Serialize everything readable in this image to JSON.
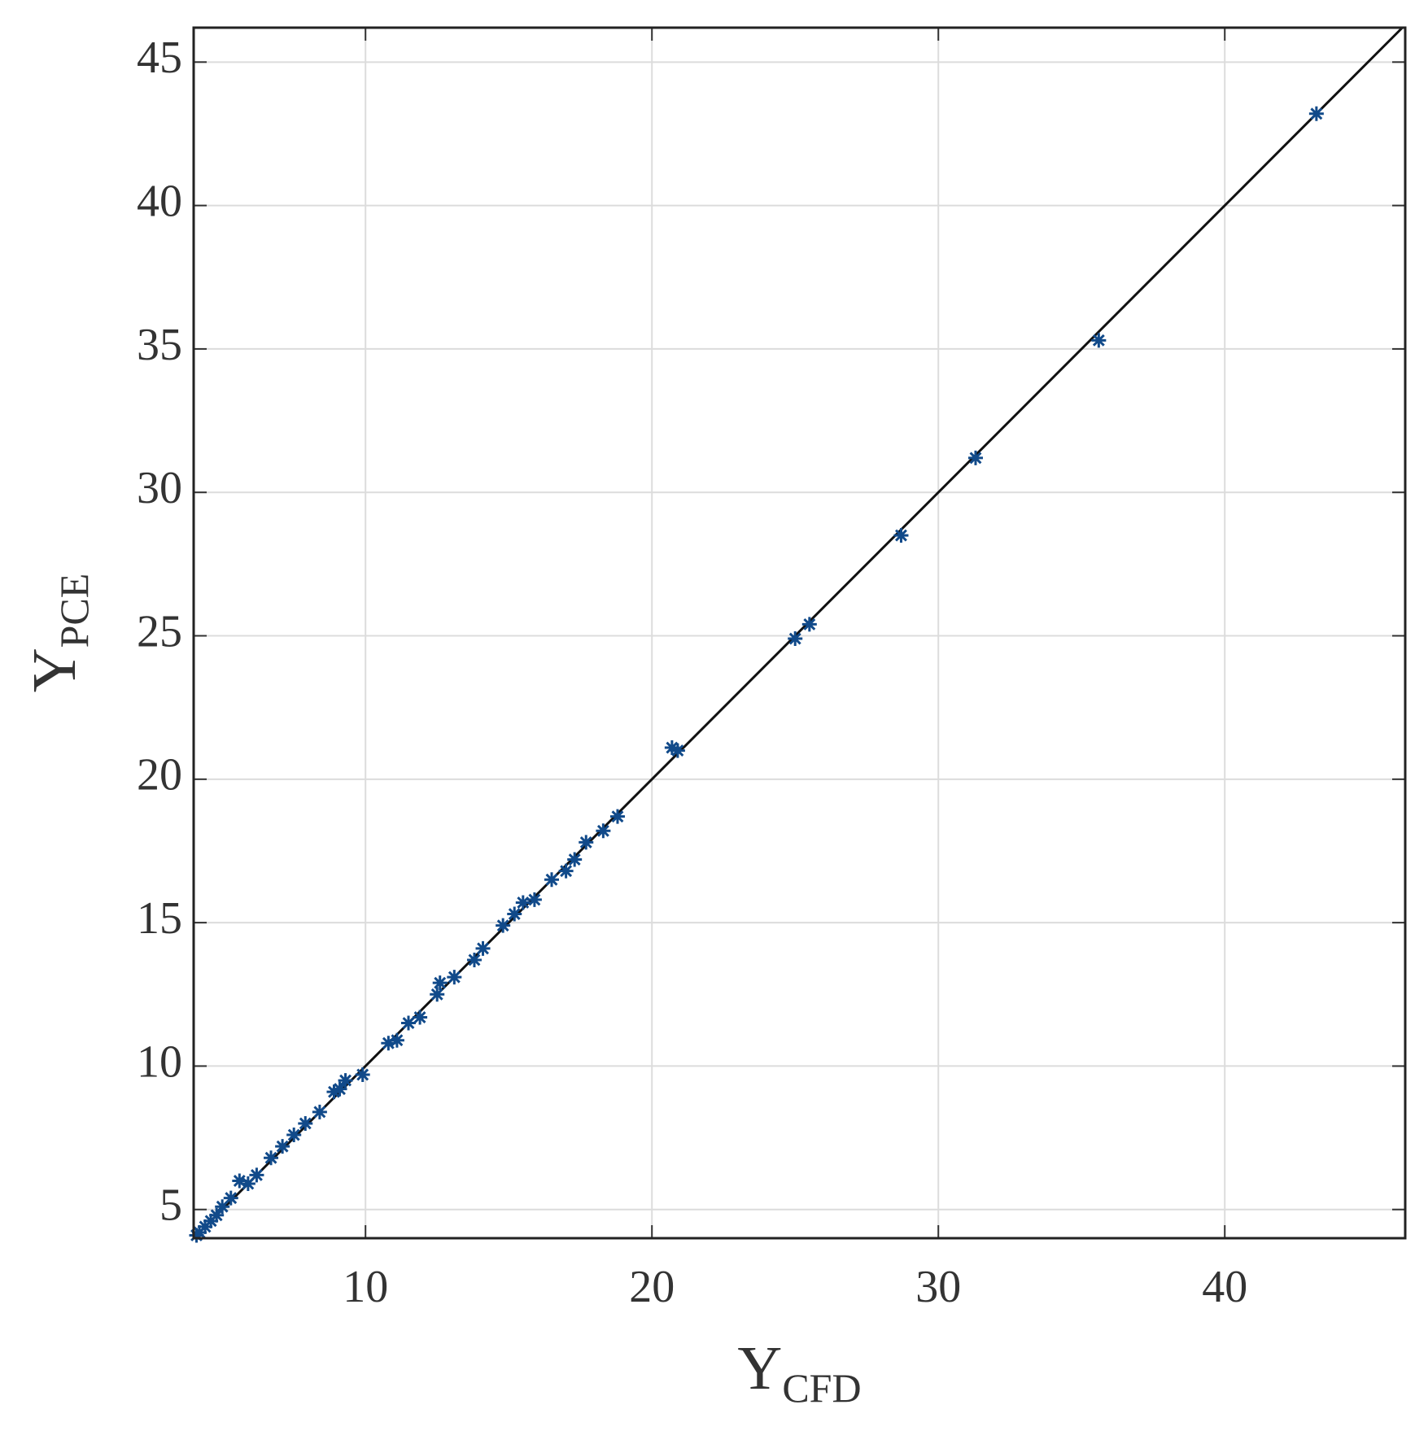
{
  "chart_data": {
    "type": "scatter",
    "xlabel": {
      "main": "Y",
      "sub": "CFD"
    },
    "ylabel": {
      "main": "Y",
      "sub": "PCE"
    },
    "xlim": [
      4,
      46.3
    ],
    "ylim": [
      4,
      46.2
    ],
    "xticks": [
      10,
      20,
      30,
      40
    ],
    "yticks": [
      5,
      10,
      15,
      20,
      25,
      30,
      35,
      40,
      45
    ],
    "grid": true,
    "color": "#114a8a",
    "reference_line": {
      "color": "#111111",
      "x": [
        4,
        46.2
      ],
      "values": [
        4,
        46.2
      ]
    },
    "x": [
      43.2,
      35.6,
      31.3,
      28.7,
      25.5,
      25,
      20.9,
      20.7,
      18.8,
      18.3,
      17.7,
      17.3,
      17,
      16.5,
      15.9,
      15.5,
      15.2,
      14.8,
      14.1,
      13.8,
      13.1,
      12.6,
      12.5,
      11.9,
      11.5,
      11.1,
      10.8,
      9.9,
      9.3,
      9.1,
      8.9,
      8.4,
      7.9,
      7.5,
      7.1,
      6.7,
      6.2,
      5.9,
      5.6,
      5.3,
      5,
      4.8,
      4.6,
      4.4,
      4.2,
      4.1
    ],
    "values": [
      43.2,
      35.3,
      31.2,
      28.5,
      25.4,
      24.9,
      21.0,
      21.1,
      18.7,
      18.2,
      17.8,
      17.2,
      16.8,
      16.5,
      15.8,
      15.7,
      15.3,
      14.9,
      14.1,
      13.7,
      13.1,
      12.9,
      12.5,
      11.7,
      11.5,
      10.9,
      10.8,
      9.7,
      9.5,
      9.2,
      9.1,
      8.4,
      8.0,
      7.6,
      7.2,
      6.8,
      6.2,
      5.9,
      6.0,
      5.4,
      5.1,
      4.8,
      4.6,
      4.4,
      4.2,
      4.1
    ]
  }
}
